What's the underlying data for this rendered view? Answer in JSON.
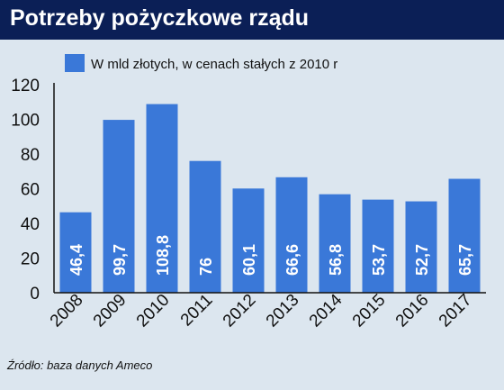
{
  "title": "Potrzeby pożyczkowe rządu",
  "source": "Źródło: baza danych Ameco",
  "chart_data": {
    "type": "bar",
    "categories": [
      "2008",
      "2009",
      "2010",
      "2011",
      "2012",
      "2013",
      "2014",
      "2015",
      "2016",
      "2017"
    ],
    "series": [
      {
        "name": "W mld złotych, w cenach stałych z 2010 r",
        "values": [
          46.4,
          99.7,
          108.8,
          76,
          60.1,
          66.6,
          56.8,
          53.7,
          52.7,
          65.7
        ],
        "labels": [
          "46,4",
          "99,7",
          "108,8",
          "76",
          "60,1",
          "66,6",
          "56,8",
          "53,7",
          "52,7",
          "65,7"
        ]
      }
    ],
    "ylim": [
      0,
      120
    ],
    "yticks": [
      0,
      20,
      40,
      60,
      80,
      100,
      120
    ],
    "grid": false,
    "legend": "top-left",
    "colors": {
      "bar": "#3a78d8",
      "header": "#0b1f56",
      "background": "#dce6ef",
      "data_label": "#ffffff"
    }
  }
}
